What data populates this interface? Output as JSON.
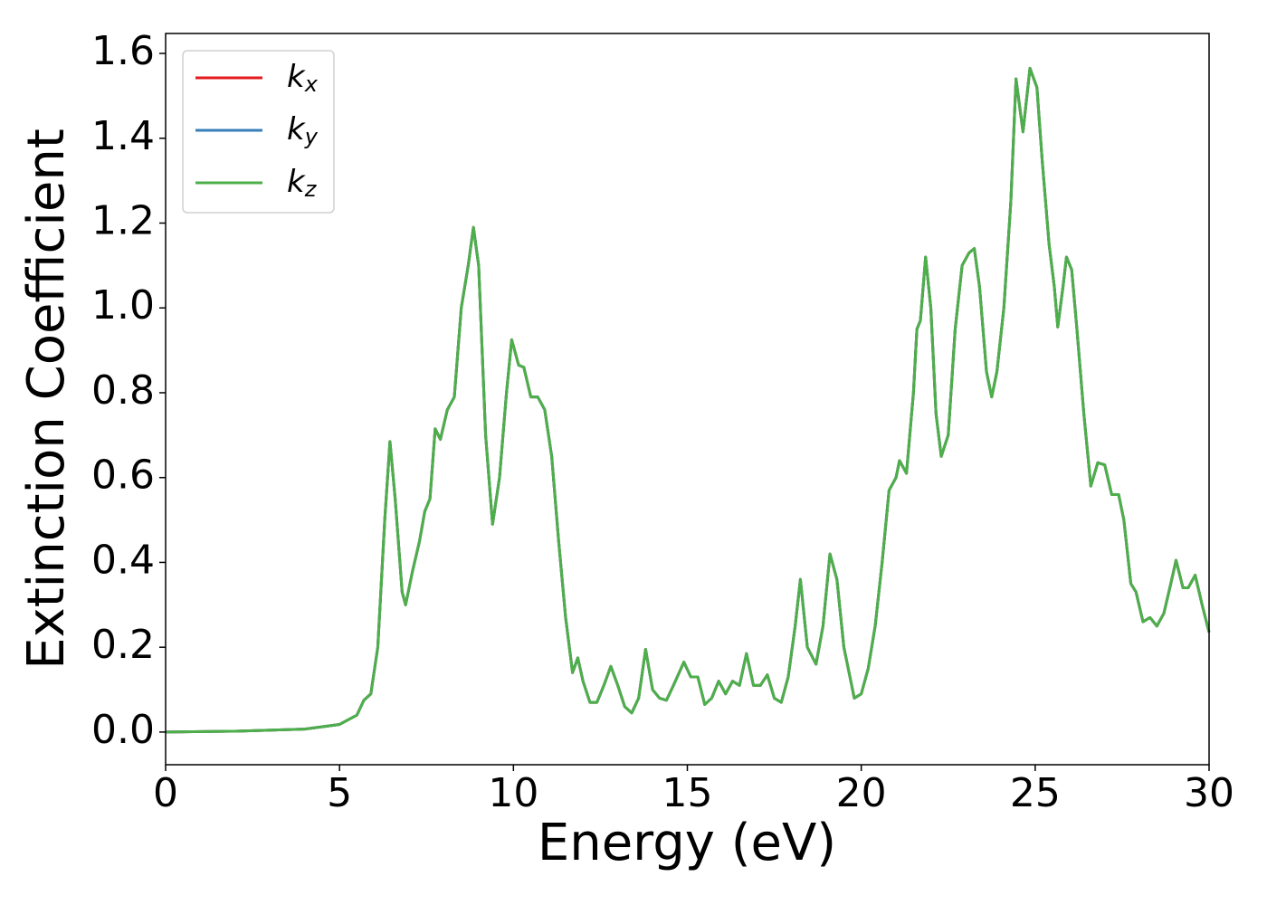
{
  "chart_data": {
    "type": "line",
    "xlabel": "Energy (eV)",
    "ylabel": "Extinction Coefficient",
    "x": [
      0,
      2,
      4,
      5,
      5.5,
      5.7,
      5.9,
      6.1,
      6.3,
      6.45,
      6.6,
      6.8,
      6.9,
      7.1,
      7.3,
      7.45,
      7.6,
      7.75,
      7.9,
      8.1,
      8.3,
      8.5,
      8.7,
      8.85,
      9.0,
      9.2,
      9.4,
      9.6,
      9.8,
      9.95,
      10.15,
      10.3,
      10.5,
      10.7,
      10.9,
      11.1,
      11.3,
      11.5,
      11.7,
      11.85,
      12.0,
      12.2,
      12.4,
      12.6,
      12.8,
      13.0,
      13.2,
      13.4,
      13.6,
      13.8,
      14.0,
      14.2,
      14.4,
      14.6,
      14.9,
      15.1,
      15.3,
      15.5,
      15.7,
      15.9,
      16.1,
      16.3,
      16.5,
      16.7,
      16.9,
      17.1,
      17.3,
      17.5,
      17.7,
      17.9,
      18.1,
      18.25,
      18.45,
      18.7,
      18.9,
      19.1,
      19.3,
      19.5,
      19.8,
      20.0,
      20.2,
      20.4,
      20.6,
      20.8,
      21.0,
      21.1,
      21.3,
      21.5,
      21.6,
      21.7,
      21.85,
      22.0,
      22.15,
      22.3,
      22.5,
      22.7,
      22.9,
      23.1,
      23.25,
      23.4,
      23.6,
      23.75,
      23.9,
      24.1,
      24.3,
      24.45,
      24.65,
      24.85,
      25.05,
      25.2,
      25.4,
      25.55,
      25.65,
      25.8,
      25.9,
      26.05,
      26.2,
      26.4,
      26.6,
      26.8,
      27.0,
      27.2,
      27.4,
      27.55,
      27.75,
      27.9,
      28.1,
      28.3,
      28.5,
      28.7,
      28.9,
      29.05,
      29.25,
      29.4,
      29.6,
      29.8,
      30
    ],
    "series": [
      {
        "name": "k_x",
        "color": "#e41a1c",
        "values": [
          0,
          0.002,
          0.007,
          0.018,
          0.04,
          0.075,
          0.09,
          0.2,
          0.5,
          0.685,
          0.55,
          0.33,
          0.3,
          0.38,
          0.45,
          0.52,
          0.55,
          0.715,
          0.69,
          0.76,
          0.79,
          1.0,
          1.1,
          1.19,
          1.1,
          0.7,
          0.49,
          0.6,
          0.8,
          0.925,
          0.865,
          0.86,
          0.79,
          0.79,
          0.76,
          0.65,
          0.45,
          0.27,
          0.14,
          0.175,
          0.12,
          0.07,
          0.07,
          0.11,
          0.155,
          0.11,
          0.06,
          0.045,
          0.08,
          0.195,
          0.1,
          0.08,
          0.075,
          0.11,
          0.165,
          0.13,
          0.13,
          0.065,
          0.08,
          0.12,
          0.09,
          0.12,
          0.11,
          0.185,
          0.11,
          0.11,
          0.135,
          0.08,
          0.07,
          0.13,
          0.25,
          0.36,
          0.2,
          0.16,
          0.25,
          0.42,
          0.36,
          0.2,
          0.08,
          0.09,
          0.15,
          0.25,
          0.4,
          0.57,
          0.6,
          0.64,
          0.61,
          0.8,
          0.95,
          0.97,
          1.12,
          1.0,
          0.75,
          0.65,
          0.7,
          0.95,
          1.1,
          1.13,
          1.14,
          1.05,
          0.85,
          0.79,
          0.85,
          1.0,
          1.25,
          1.54,
          1.415,
          1.565,
          1.52,
          1.35,
          1.15,
          1.05,
          0.955,
          1.05,
          1.12,
          1.09,
          0.95,
          0.75,
          0.58,
          0.635,
          0.63,
          0.56,
          0.56,
          0.5,
          0.35,
          0.33,
          0.26,
          0.27,
          0.25,
          0.28,
          0.35,
          0.405,
          0.34,
          0.34,
          0.37,
          0.3,
          0.235
        ]
      },
      {
        "name": "k_y",
        "color": "#377eb8",
        "values": [
          0,
          0.002,
          0.007,
          0.018,
          0.04,
          0.075,
          0.09,
          0.2,
          0.5,
          0.685,
          0.55,
          0.33,
          0.3,
          0.38,
          0.45,
          0.52,
          0.55,
          0.715,
          0.69,
          0.76,
          0.79,
          1.0,
          1.1,
          1.19,
          1.1,
          0.7,
          0.49,
          0.6,
          0.8,
          0.925,
          0.865,
          0.86,
          0.79,
          0.79,
          0.76,
          0.65,
          0.45,
          0.27,
          0.14,
          0.175,
          0.12,
          0.07,
          0.07,
          0.11,
          0.155,
          0.11,
          0.06,
          0.045,
          0.08,
          0.195,
          0.1,
          0.08,
          0.075,
          0.11,
          0.165,
          0.13,
          0.13,
          0.065,
          0.08,
          0.12,
          0.09,
          0.12,
          0.11,
          0.185,
          0.11,
          0.11,
          0.135,
          0.08,
          0.07,
          0.13,
          0.25,
          0.36,
          0.2,
          0.16,
          0.25,
          0.42,
          0.36,
          0.2,
          0.08,
          0.09,
          0.15,
          0.25,
          0.4,
          0.57,
          0.6,
          0.64,
          0.61,
          0.8,
          0.95,
          0.97,
          1.12,
          1.0,
          0.75,
          0.65,
          0.7,
          0.95,
          1.1,
          1.13,
          1.14,
          1.05,
          0.85,
          0.79,
          0.85,
          1.0,
          1.25,
          1.54,
          1.415,
          1.565,
          1.52,
          1.35,
          1.15,
          1.05,
          0.955,
          1.05,
          1.12,
          1.09,
          0.95,
          0.75,
          0.58,
          0.635,
          0.63,
          0.56,
          0.56,
          0.5,
          0.35,
          0.33,
          0.26,
          0.27,
          0.25,
          0.28,
          0.35,
          0.405,
          0.34,
          0.34,
          0.37,
          0.3,
          0.235
        ]
      },
      {
        "name": "k_z",
        "color": "#4daf4a",
        "values": [
          0,
          0.002,
          0.007,
          0.018,
          0.04,
          0.075,
          0.09,
          0.2,
          0.5,
          0.685,
          0.55,
          0.33,
          0.3,
          0.38,
          0.45,
          0.52,
          0.55,
          0.715,
          0.69,
          0.76,
          0.79,
          1.0,
          1.1,
          1.19,
          1.1,
          0.7,
          0.49,
          0.6,
          0.8,
          0.925,
          0.865,
          0.86,
          0.79,
          0.79,
          0.76,
          0.65,
          0.45,
          0.27,
          0.14,
          0.175,
          0.12,
          0.07,
          0.07,
          0.11,
          0.155,
          0.11,
          0.06,
          0.045,
          0.08,
          0.195,
          0.1,
          0.08,
          0.075,
          0.11,
          0.165,
          0.13,
          0.13,
          0.065,
          0.08,
          0.12,
          0.09,
          0.12,
          0.11,
          0.185,
          0.11,
          0.11,
          0.135,
          0.08,
          0.07,
          0.13,
          0.25,
          0.36,
          0.2,
          0.16,
          0.25,
          0.42,
          0.36,
          0.2,
          0.08,
          0.09,
          0.15,
          0.25,
          0.4,
          0.57,
          0.6,
          0.64,
          0.61,
          0.8,
          0.95,
          0.97,
          1.12,
          1.0,
          0.75,
          0.65,
          0.7,
          0.95,
          1.1,
          1.13,
          1.14,
          1.05,
          0.85,
          0.79,
          0.85,
          1.0,
          1.25,
          1.54,
          1.415,
          1.565,
          1.52,
          1.35,
          1.15,
          1.05,
          0.955,
          1.05,
          1.12,
          1.09,
          0.95,
          0.75,
          0.58,
          0.635,
          0.63,
          0.56,
          0.56,
          0.5,
          0.35,
          0.33,
          0.26,
          0.27,
          0.25,
          0.28,
          0.35,
          0.405,
          0.34,
          0.34,
          0.37,
          0.3,
          0.235
        ]
      }
    ],
    "xlim": [
      0,
      30
    ],
    "xticks": [
      0,
      5,
      10,
      15,
      20,
      25,
      30
    ],
    "ylim": [
      -0.077,
      1.647
    ],
    "yticks": [
      {
        "value": 0,
        "label": "0.0"
      },
      0.2,
      0.4,
      0.6,
      0.8,
      {
        "value": 1,
        "label": "1.0"
      },
      1.2,
      1.4,
      1.6
    ],
    "legend": "upper left"
  }
}
